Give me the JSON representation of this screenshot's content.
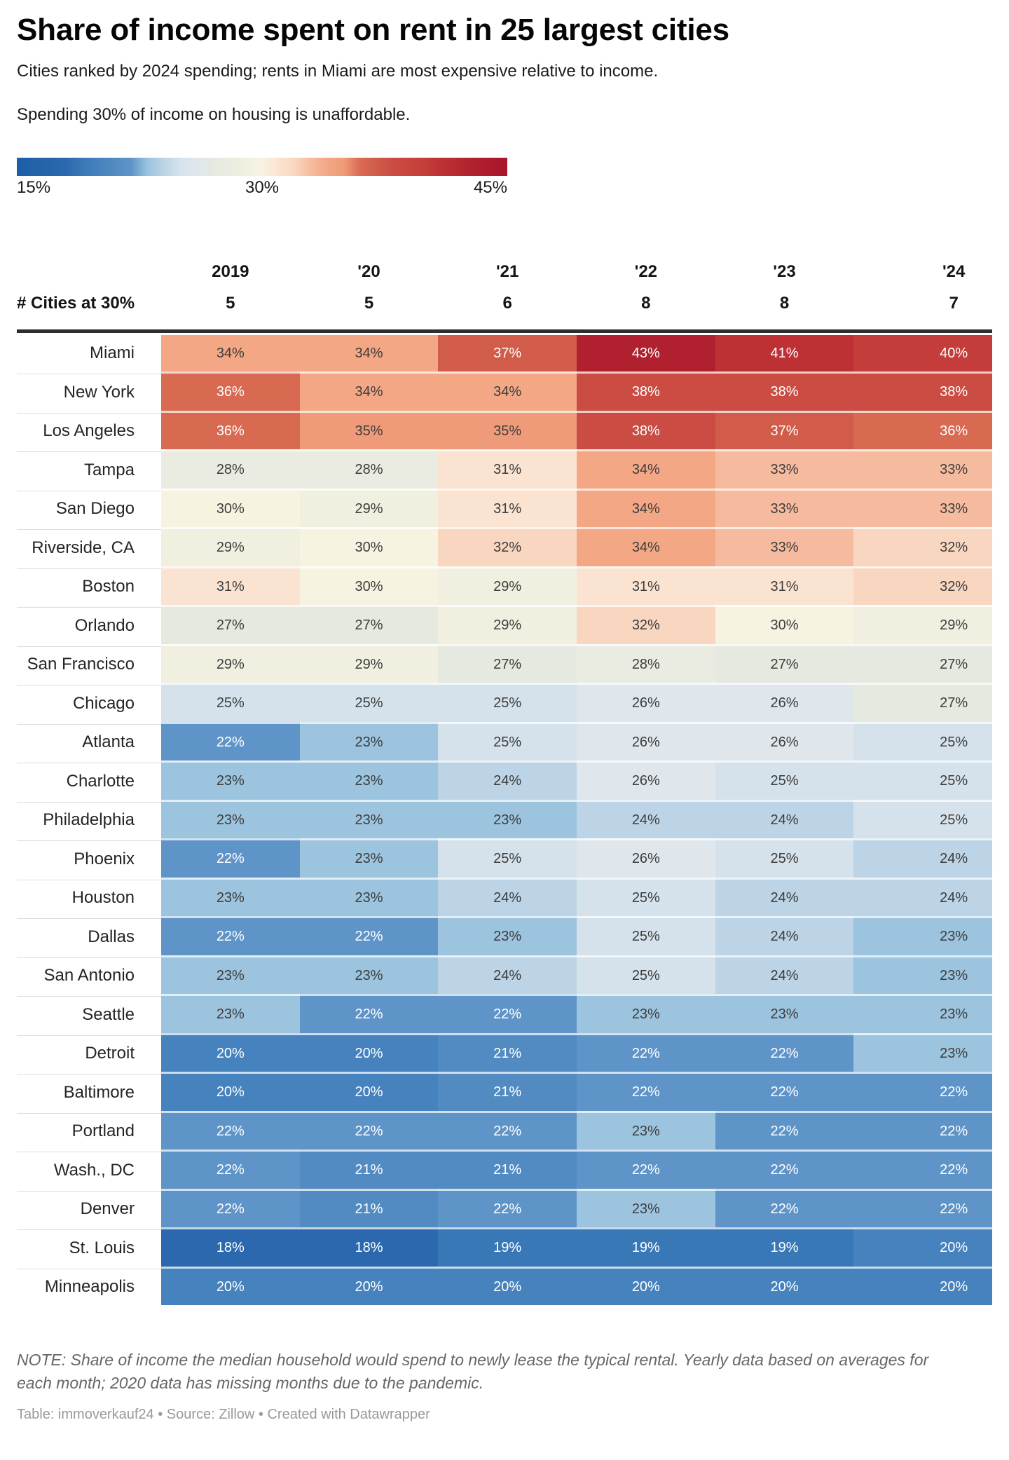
{
  "header": {
    "title": "Share of income spent on rent in 25 largest cities",
    "subtitle": "Cities ranked by 2024 spending; rents in Miami are most expensive relative to income.",
    "description": "Spending 30% of income on housing is unaffordable."
  },
  "chart_data": {
    "type": "heatmap",
    "title": "Share of income spent on rent in 25 largest cities",
    "categories": [
      "2019",
      "'20",
      "'21",
      "'22",
      "'23",
      "'24"
    ],
    "cities_at_30": {
      "label": "# Cities at 30%",
      "values": [
        "5",
        "5",
        "6",
        "8",
        "8",
        "7"
      ]
    },
    "series": [
      {
        "name": "Miami",
        "values": [
          34,
          34,
          37,
          43,
          41,
          40
        ]
      },
      {
        "name": "New York",
        "values": [
          36,
          34,
          34,
          38,
          38,
          38
        ]
      },
      {
        "name": "Los Angeles",
        "values": [
          36,
          35,
          35,
          38,
          37,
          36
        ]
      },
      {
        "name": "Tampa",
        "values": [
          28,
          28,
          31,
          34,
          33,
          33
        ]
      },
      {
        "name": "San Diego",
        "values": [
          30,
          29,
          31,
          34,
          33,
          33
        ]
      },
      {
        "name": "Riverside, CA",
        "values": [
          29,
          30,
          32,
          34,
          33,
          32
        ]
      },
      {
        "name": "Boston",
        "values": [
          31,
          30,
          29,
          31,
          31,
          32
        ]
      },
      {
        "name": "Orlando",
        "values": [
          27,
          27,
          29,
          32,
          30,
          29
        ]
      },
      {
        "name": "San Francisco",
        "values": [
          29,
          29,
          27,
          28,
          27,
          27
        ]
      },
      {
        "name": "Chicago",
        "values": [
          25,
          25,
          25,
          26,
          26,
          27
        ]
      },
      {
        "name": "Atlanta",
        "values": [
          22,
          23,
          25,
          26,
          26,
          25
        ]
      },
      {
        "name": "Charlotte",
        "values": [
          23,
          23,
          24,
          26,
          25,
          25
        ]
      },
      {
        "name": "Philadelphia",
        "values": [
          23,
          23,
          23,
          24,
          24,
          25
        ]
      },
      {
        "name": "Phoenix",
        "values": [
          22,
          23,
          25,
          26,
          25,
          24
        ]
      },
      {
        "name": "Houston",
        "values": [
          23,
          23,
          24,
          25,
          24,
          24
        ]
      },
      {
        "name": "Dallas",
        "values": [
          22,
          22,
          23,
          25,
          24,
          23
        ]
      },
      {
        "name": "San Antonio",
        "values": [
          23,
          23,
          24,
          25,
          24,
          23
        ]
      },
      {
        "name": "Seattle",
        "values": [
          23,
          22,
          22,
          23,
          23,
          23
        ]
      },
      {
        "name": "Detroit",
        "values": [
          20,
          20,
          21,
          22,
          22,
          23
        ]
      },
      {
        "name": "Baltimore",
        "values": [
          20,
          20,
          21,
          22,
          22,
          22
        ]
      },
      {
        "name": "Portland",
        "values": [
          22,
          22,
          22,
          23,
          22,
          22
        ]
      },
      {
        "name": "Wash., DC",
        "values": [
          22,
          21,
          21,
          22,
          22,
          22
        ]
      },
      {
        "name": "Denver",
        "values": [
          22,
          21,
          22,
          23,
          22,
          22
        ]
      },
      {
        "name": "St. Louis",
        "values": [
          18,
          18,
          19,
          19,
          19,
          20
        ]
      },
      {
        "name": "Minneapolis",
        "values": [
          20,
          20,
          20,
          20,
          20,
          20
        ]
      }
    ],
    "value_suffix": "%",
    "color_scale": {
      "type": "diverging",
      "domain": [
        15,
        45
      ],
      "midpoint": 30,
      "labels": [
        "15%",
        "30%",
        "45%"
      ],
      "anchors": {
        "15": "#1c5fa6",
        "18": "#2c68ae",
        "19": "#3978b6",
        "20": "#4682bd",
        "21": "#528bc2",
        "22": "#5f94c8",
        "23": "#9cc4de",
        "24": "#bcd4e6",
        "25": "#d5e2eb",
        "26": "#dfe7ec",
        "27": "#e5e9e0",
        "28": "#eaece1",
        "29": "#f1f0e0",
        "30": "#f7f3e1",
        "31": "#fbe3d1",
        "32": "#f9d6c0",
        "33": "#f6bb9e",
        "34": "#f3a785",
        "35": "#ef9b79",
        "36": "#d96a52",
        "37": "#d05c49",
        "38": "#cb4c42",
        "40": "#c43d3a",
        "41": "#bd3134",
        "43": "#b0202e",
        "45": "#a91529"
      },
      "text_dark": "#3d3d3d",
      "text_light": "#ffffff",
      "light_text_when": "value <= 22 or value >= 36"
    }
  },
  "footer": {
    "note": "NOTE: Share of income the median household would spend to newly lease the typical rental. Yearly data based on averages for each month; 2020 data has missing months due to the pandemic.",
    "credits": "Table: immoverkauf24 • Source: Zillow • Created with Datawrapper"
  }
}
